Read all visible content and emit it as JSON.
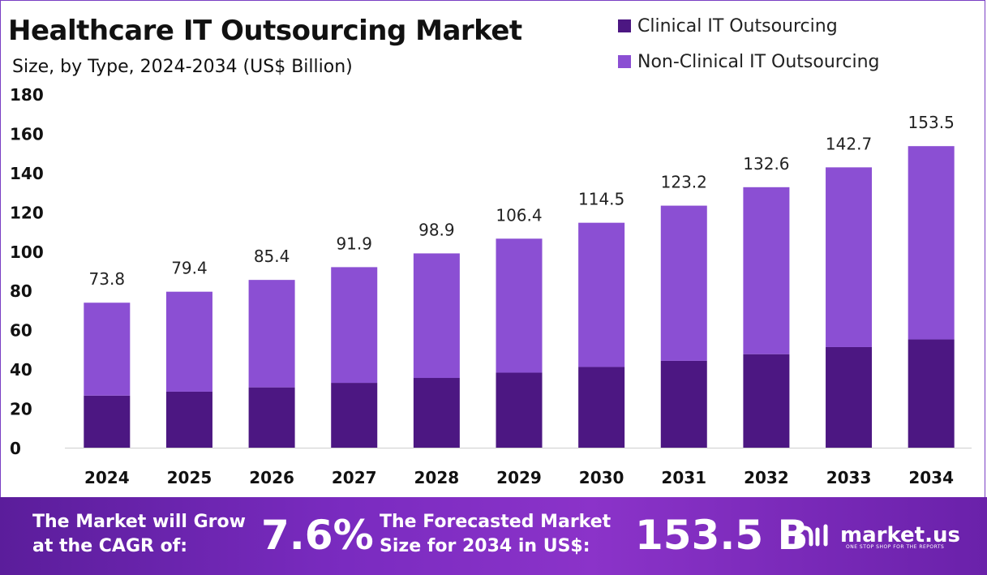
{
  "header": {
    "title": "Healthcare IT Outsourcing Market",
    "subtitle": "Size, by Type, 2024-2034 (US$ Billion)"
  },
  "legend": [
    {
      "label": "Clinical IT Outsourcing",
      "color": "#4c1782"
    },
    {
      "label": "Non-Clinical IT Outsourcing",
      "color": "#8b4fd3"
    }
  ],
  "chart_data": {
    "type": "bar",
    "stacked": true,
    "categories": [
      "2024",
      "2025",
      "2026",
      "2027",
      "2028",
      "2029",
      "2030",
      "2031",
      "2032",
      "2033",
      "2034"
    ],
    "series": [
      {
        "name": "Clinical IT Outsourcing",
        "color": "#4c1782",
        "values": [
          26.5,
          28.5,
          30.7,
          33.0,
          35.5,
          38.2,
          41.1,
          44.2,
          47.6,
          51.2,
          55.1
        ]
      },
      {
        "name": "Non-Clinical IT Outsourcing",
        "color": "#8b4fd3",
        "values": [
          47.3,
          50.9,
          54.7,
          58.9,
          63.4,
          68.2,
          73.4,
          79.0,
          85.0,
          91.5,
          98.4
        ]
      }
    ],
    "totals": [
      "73.8",
      "79.4",
      "85.4",
      "91.9",
      "98.9",
      "106.4",
      "114.5",
      "123.2",
      "132.6",
      "142.7",
      "153.5"
    ],
    "yticks": [
      0,
      20,
      40,
      60,
      80,
      100,
      120,
      140,
      160,
      180
    ],
    "ylim": [
      0,
      180
    ],
    "grid": false,
    "legend_position": "top-right"
  },
  "footer": {
    "cagr_label": "The Market will Grow at the CAGR of:",
    "cagr_value": "7.6%",
    "forecast_label": "The Forecasted Market Size for 2034 in US$:",
    "forecast_value": "153.5 B",
    "brand": "market.us",
    "tagline": "ONE STOP SHOP FOR THE REPORTS"
  }
}
